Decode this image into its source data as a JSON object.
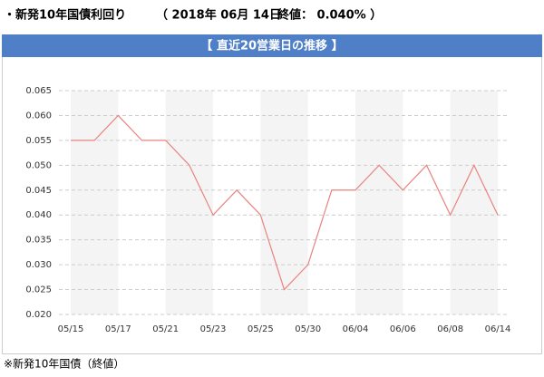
{
  "header": {
    "title": "・新発10年国債利回り",
    "date": "（ 2018年 06月 14日",
    "close": "終値： 0.040% ）"
  },
  "chart_data": {
    "type": "line",
    "title": "【 直近20営業日の推移 】",
    "categories": [
      "05/15",
      null,
      "05/17",
      null,
      "05/21",
      null,
      "05/23",
      null,
      "05/25",
      null,
      "05/30",
      null,
      "06/04",
      null,
      "06/06",
      null,
      "06/08",
      null,
      "06/14"
    ],
    "series": [
      {
        "color": "#e8837f",
        "values": [
          0.055,
          0.055,
          0.06,
          0.055,
          0.055,
          0.05,
          0.04,
          0.045,
          0.04,
          0.025,
          0.03,
          0.045,
          0.045,
          0.05,
          0.045,
          0.05,
          0.04,
          0.05,
          0.04
        ]
      }
    ],
    "ylim": [
      0.02,
      0.065
    ],
    "yticks": [
      {
        "value": 0.02,
        "label": "0.020"
      },
      0.025,
      {
        "value": 0.03,
        "label": "0.030"
      },
      0.035,
      {
        "value": 0.04,
        "label": "0.040"
      },
      0.045,
      {
        "value": 0.05,
        "label": "0.050"
      },
      0.055,
      {
        "value": 0.06,
        "label": "0.060"
      },
      0.065
    ],
    "grid": true
  },
  "footnote": "※新発10年国債（終値）"
}
